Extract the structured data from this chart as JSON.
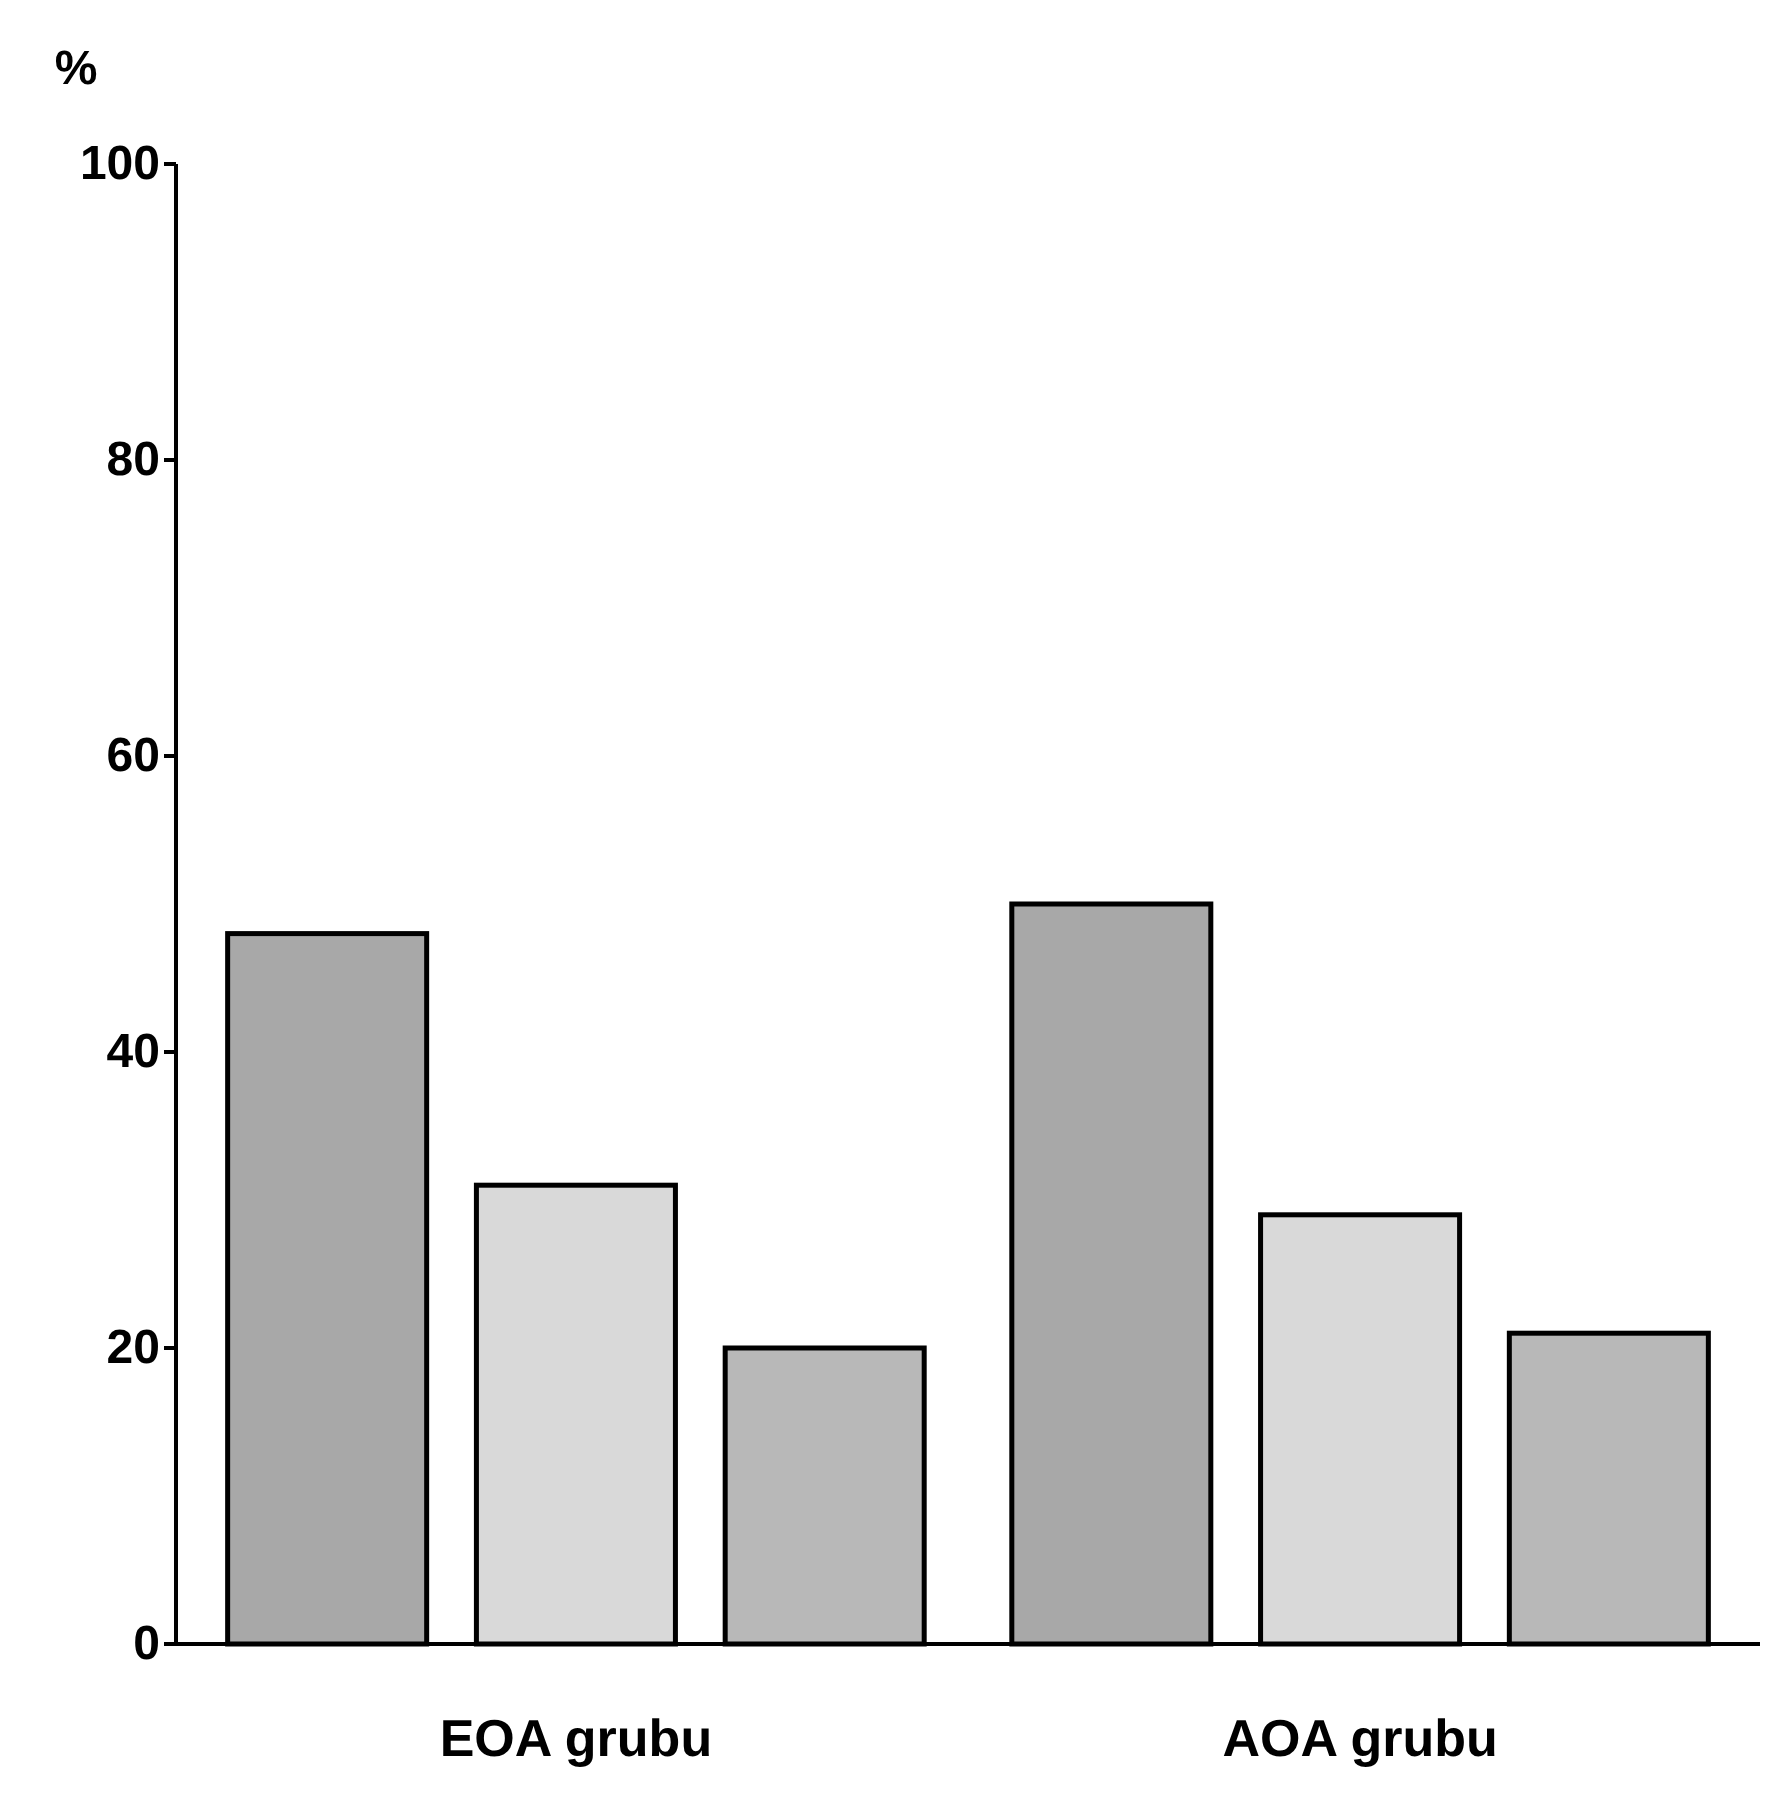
{
  "chart_data": {
    "type": "bar",
    "ylabel": "%",
    "categories": [
      "EOA grubu",
      "AOA grubu"
    ],
    "series": [
      {
        "color": "#a8a8a8",
        "values": [
          48,
          50
        ]
      },
      {
        "color": "#d9d9d9",
        "values": [
          31,
          29
        ]
      },
      {
        "color": "#b8b8b8",
        "values": [
          20,
          21
        ]
      }
    ],
    "ylim": [
      0,
      100
    ],
    "yticks": [
      0,
      20,
      40,
      60,
      80,
      100
    ],
    "grid": false,
    "legend": false
  }
}
